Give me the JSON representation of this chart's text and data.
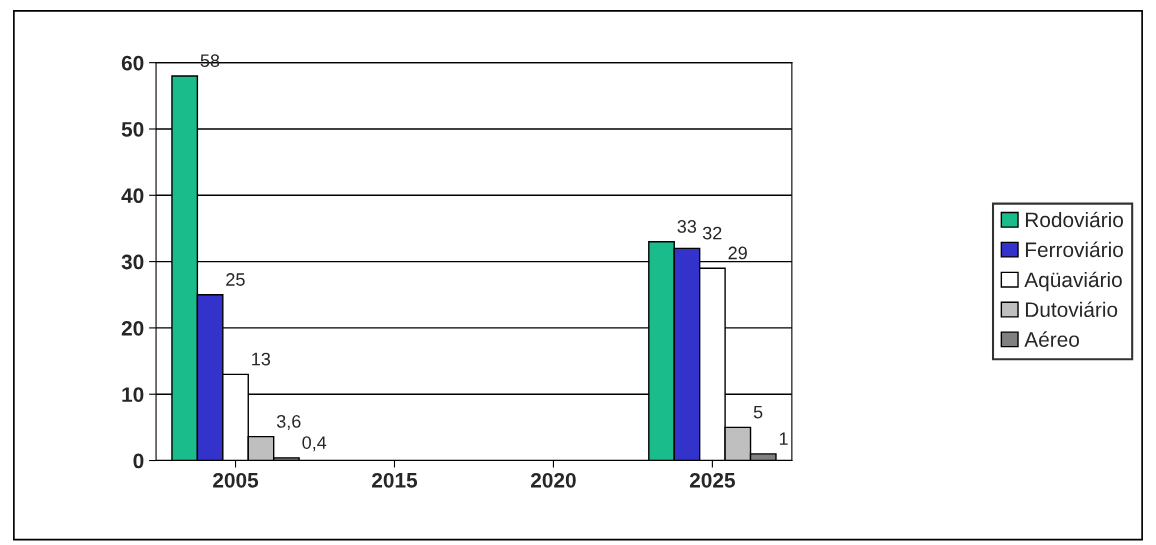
{
  "chart_data": {
    "type": "bar",
    "categories": [
      "2005",
      "2015",
      "2020",
      "2025"
    ],
    "series": [
      {
        "name": "Rodoviário",
        "color": "#1abc8c",
        "values": [
          58,
          null,
          null,
          33
        ],
        "value_labels": [
          "58",
          null,
          null,
          "33"
        ]
      },
      {
        "name": "Ferroviário",
        "color": "#3333cc",
        "values": [
          25,
          null,
          null,
          32
        ],
        "value_labels": [
          "25",
          null,
          null,
          "32"
        ]
      },
      {
        "name": "Aqüaviário",
        "color": "#ffffff",
        "values": [
          13,
          null,
          null,
          29
        ],
        "value_labels": [
          "13",
          null,
          null,
          "29"
        ]
      },
      {
        "name": "Dutoviário",
        "color": "#bfbfbf",
        "values": [
          3.6,
          null,
          null,
          5
        ],
        "value_labels": [
          "3,6",
          null,
          null,
          "5"
        ]
      },
      {
        "name": "Aéreo",
        "color": "#808080",
        "values": [
          0.4,
          null,
          null,
          1
        ],
        "value_labels": [
          "0,4",
          null,
          null,
          "1"
        ]
      }
    ],
    "ylim": [
      0,
      60
    ],
    "yticks": [
      0,
      10,
      20,
      30,
      40,
      50,
      60
    ],
    "grid": "y",
    "legend": "right"
  }
}
